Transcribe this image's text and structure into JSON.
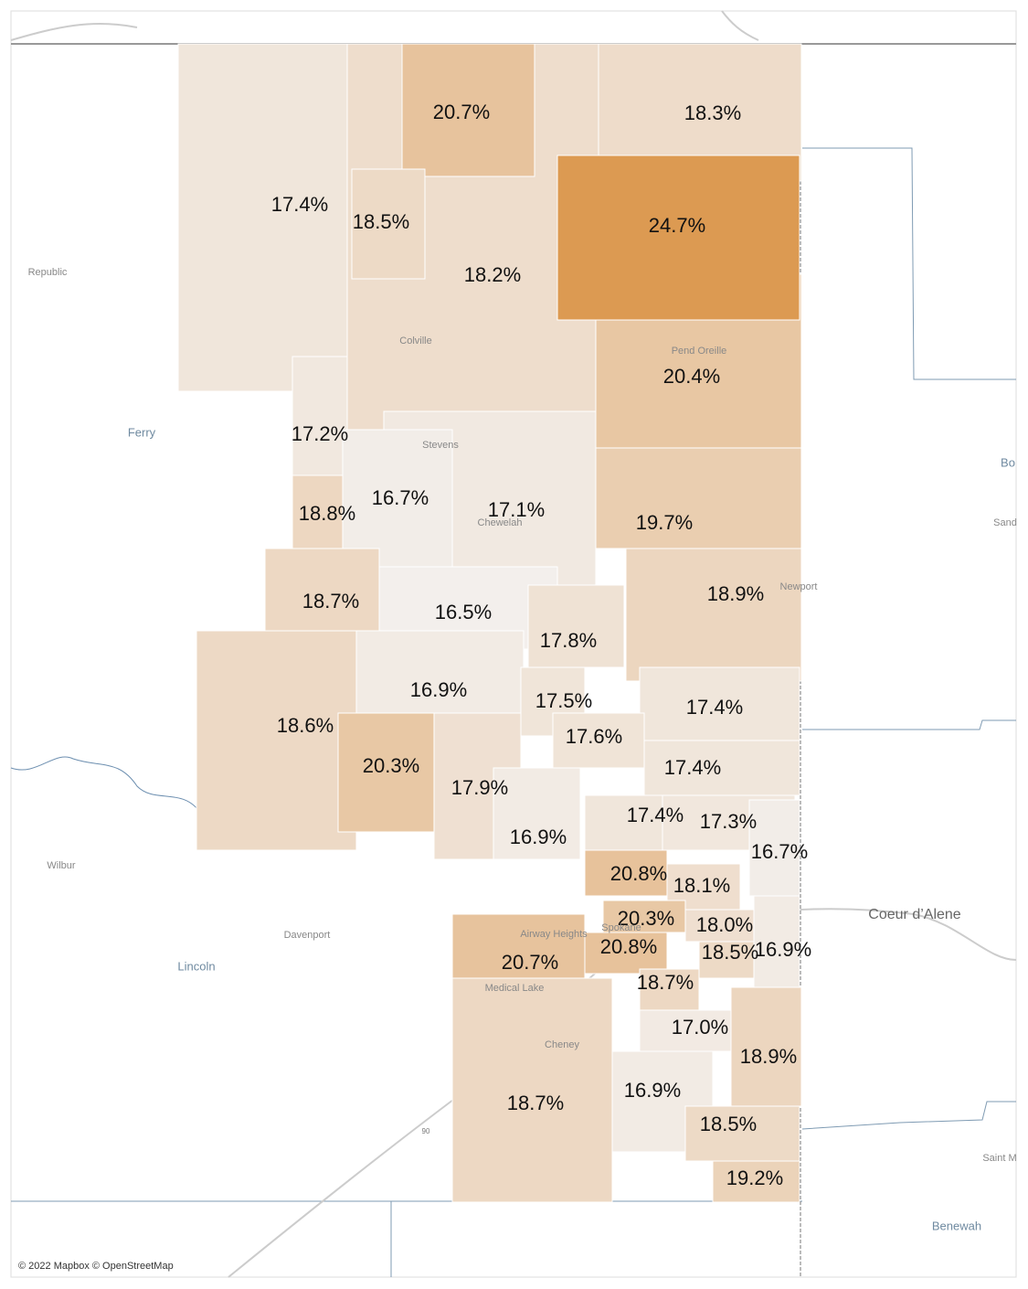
{
  "chart_data": {
    "type": "choropleth",
    "values": [
      20.7,
      18.3,
      17.4,
      18.5,
      24.7,
      18.2,
      20.4,
      17.2,
      16.7,
      17.1,
      18.8,
      19.7,
      18.9,
      18.7,
      16.5,
      17.8,
      16.9,
      17.5,
      17.4,
      18.6,
      17.6,
      20.3,
      17.4,
      17.9,
      17.4,
      17.3,
      16.9,
      16.7,
      20.8,
      18.1,
      20.3,
      18.0,
      20.8,
      18.5,
      16.9,
      20.7,
      18.7,
      17.0,
      18.9,
      16.9,
      18.7,
      18.5,
      19.2
    ],
    "value_labels": [
      "20.7%",
      "18.3%",
      "17.4%",
      "18.5%",
      "24.7%",
      "18.2%",
      "20.4%",
      "17.2%",
      "16.7%",
      "17.1%",
      "18.8%",
      "19.7%",
      "18.9%",
      "18.7%",
      "16.5%",
      "17.8%",
      "16.9%",
      "17.5%",
      "17.4%",
      "18.6%",
      "17.6%",
      "20.3%",
      "17.4%",
      "17.9%",
      "17.4%",
      "17.3%",
      "16.9%",
      "16.7%",
      "20.8%",
      "18.1%",
      "20.3%",
      "18.0%",
      "20.8%",
      "18.5%",
      "16.9%",
      "20.7%",
      "18.7%",
      "17.0%",
      "18.9%",
      "16.9%",
      "18.7%",
      "18.5%",
      "19.2%"
    ],
    "color_scale": [
      "#f3efec",
      "#dc9a52"
    ]
  },
  "places": [
    "Republic",
    "Ferry",
    "Colville",
    "Pend Oreille",
    "Stevens",
    "Chewelah",
    "Newport",
    "Lincoln",
    "Wilbur",
    "Davenport",
    "Airway Heights",
    "Medical Lake",
    "Cheney",
    "Spokane",
    "Coeur d’Alene",
    "Bo",
    "Sand",
    "Saint M",
    "Benewah",
    "90"
  ],
  "attribution": "© 2022 Mapbox © OpenStreetMap"
}
